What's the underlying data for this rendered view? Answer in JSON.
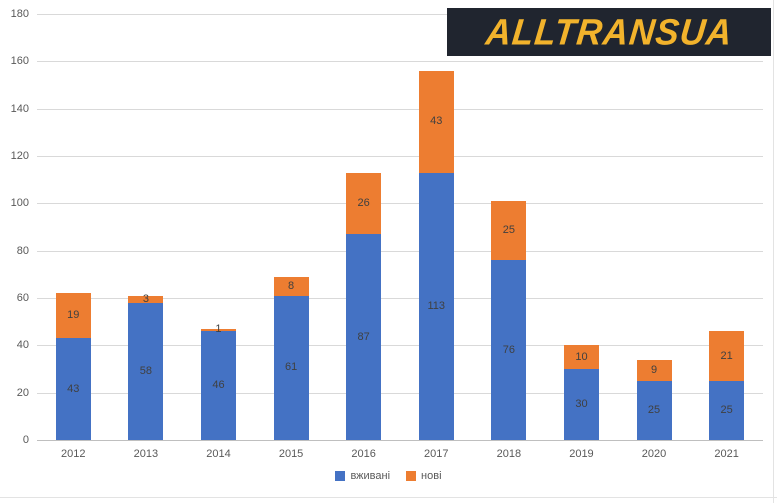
{
  "logo": {
    "text": "ALLTRANSUA"
  },
  "colors": {
    "background": "#FFFFFF",
    "gridline": "#D9D9D9",
    "axis_line": "#BFBFBF",
    "tick_label": "#595959",
    "data_label": "#404040",
    "logo_bg": "#20252F",
    "logo_text": "#F2B32C",
    "series_blue": "#4472C4",
    "series_orange": "#ED7D31"
  },
  "chart_data": {
    "type": "bar",
    "stacked": true,
    "title": "",
    "xlabel": "",
    "ylabel": "",
    "categories": [
      "2012",
      "2013",
      "2014",
      "2015",
      "2016",
      "2017",
      "2018",
      "2019",
      "2020",
      "2021"
    ],
    "series": [
      {
        "name": "вживані",
        "color": "#4472C4",
        "values": [
          43,
          58,
          46,
          61,
          87,
          113,
          76,
          30,
          25,
          25
        ]
      },
      {
        "name": "нові",
        "color": "#ED7D31",
        "values": [
          19,
          3,
          1,
          8,
          26,
          43,
          25,
          10,
          9,
          21
        ]
      }
    ],
    "totals": [
      62,
      61,
      47,
      69,
      113,
      156,
      101,
      40,
      34,
      46
    ],
    "ylim": [
      0,
      180
    ],
    "yticks": [
      0,
      20,
      40,
      60,
      80,
      100,
      120,
      140,
      160,
      180
    ],
    "grid": true,
    "data_labels": true,
    "legend_position": "bottom"
  }
}
